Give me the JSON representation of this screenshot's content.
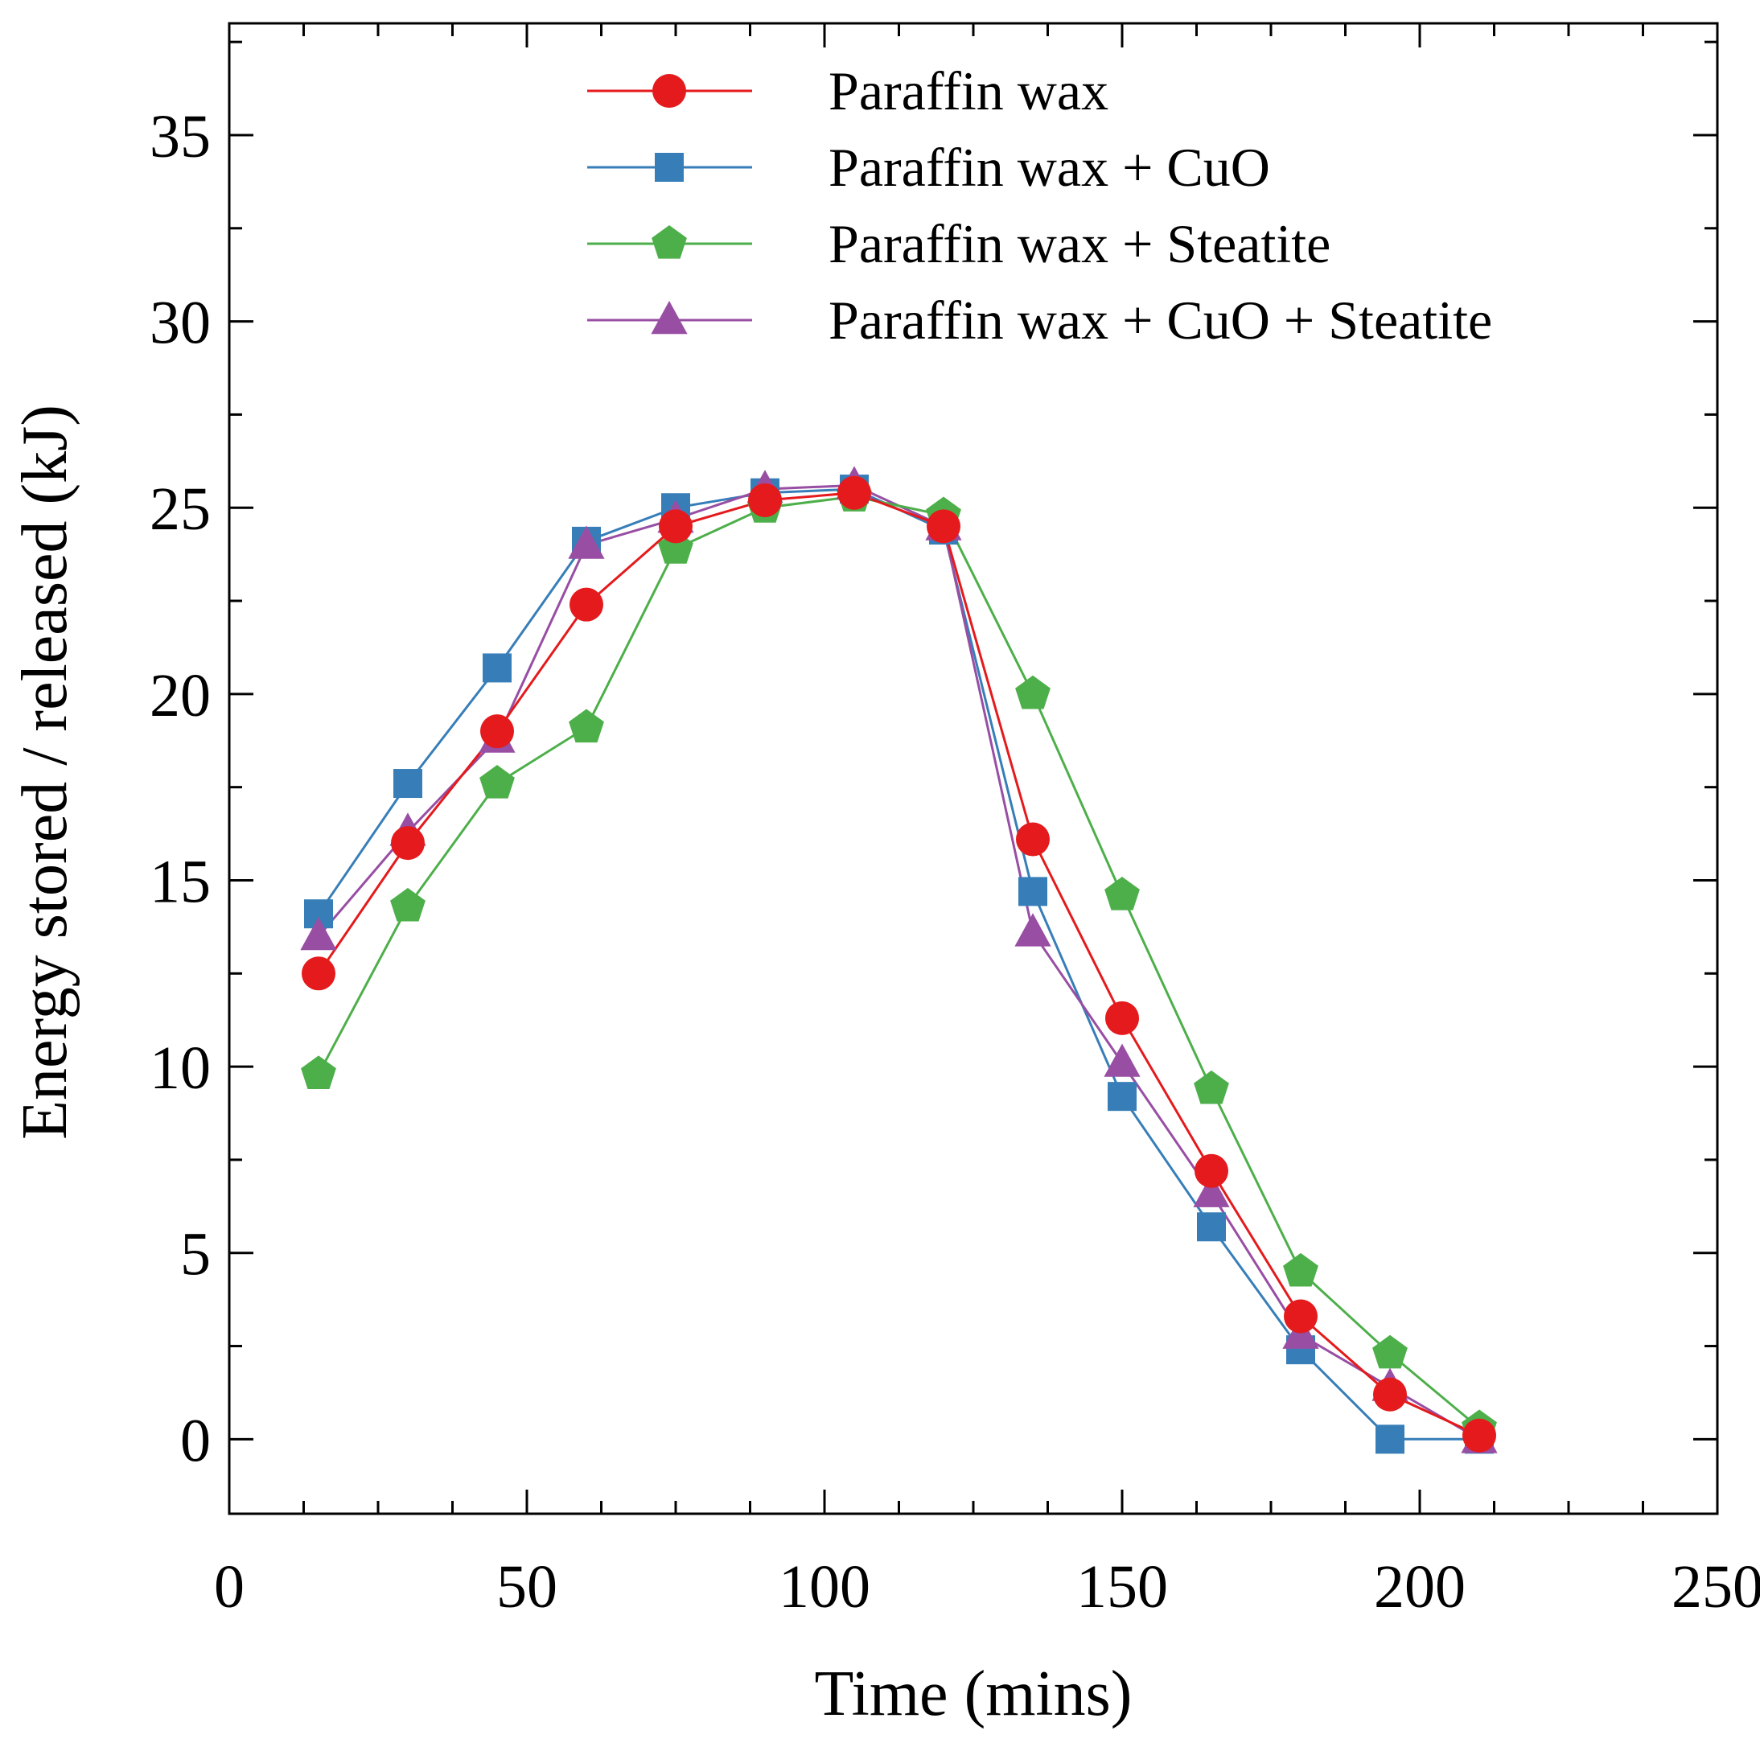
{
  "chart_data": {
    "type": "line",
    "title": "",
    "xlabel": "Time (mins)",
    "ylabel": "Energy stored / released (kJ)",
    "xlim": [
      0,
      250
    ],
    "ylim": [
      -2,
      38
    ],
    "xticks": [
      0,
      50,
      100,
      150,
      200,
      250
    ],
    "yticks": [
      0,
      5,
      10,
      15,
      20,
      25,
      30,
      35
    ],
    "xtick_labels": [
      "0",
      "50",
      "100",
      "150",
      "200",
      "250"
    ],
    "ytick_labels": [
      "0",
      "5",
      "10",
      "15",
      "20",
      "25",
      "30",
      "35"
    ],
    "grid": false,
    "legend_position": "top-center",
    "x": [
      15,
      30,
      45,
      60,
      75,
      90,
      105,
      120,
      135,
      150,
      165,
      180,
      195,
      210
    ],
    "series": [
      {
        "name": "Paraffin wax",
        "color": "#e41a1c",
        "marker": "circle",
        "values": [
          12.5,
          16.0,
          19.0,
          22.4,
          24.5,
          25.2,
          25.4,
          24.5,
          16.1,
          11.3,
          7.2,
          3.3,
          1.2,
          0.1
        ]
      },
      {
        "name": "Paraffin wax + CuO",
        "color": "#377eb8",
        "marker": "square",
        "values": [
          14.1,
          17.6,
          20.7,
          24.1,
          25.0,
          25.4,
          25.5,
          24.4,
          14.7,
          9.2,
          5.7,
          2.4,
          0.0,
          0.0
        ]
      },
      {
        "name": "Paraffin wax + Steatite",
        "color": "#4daf4a",
        "marker": "pentagon",
        "values": [
          9.8,
          14.3,
          17.6,
          19.1,
          23.9,
          25.0,
          25.3,
          24.8,
          20.0,
          14.6,
          9.4,
          4.5,
          2.3,
          0.3
        ]
      },
      {
        "name": "Paraffin wax + CuO + Steatite",
        "color": "#984ea3",
        "marker": "triangle",
        "values": [
          13.5,
          16.3,
          18.8,
          24.0,
          24.7,
          25.5,
          25.6,
          24.5,
          13.6,
          10.1,
          6.6,
          2.8,
          1.4,
          0.0
        ]
      }
    ]
  }
}
